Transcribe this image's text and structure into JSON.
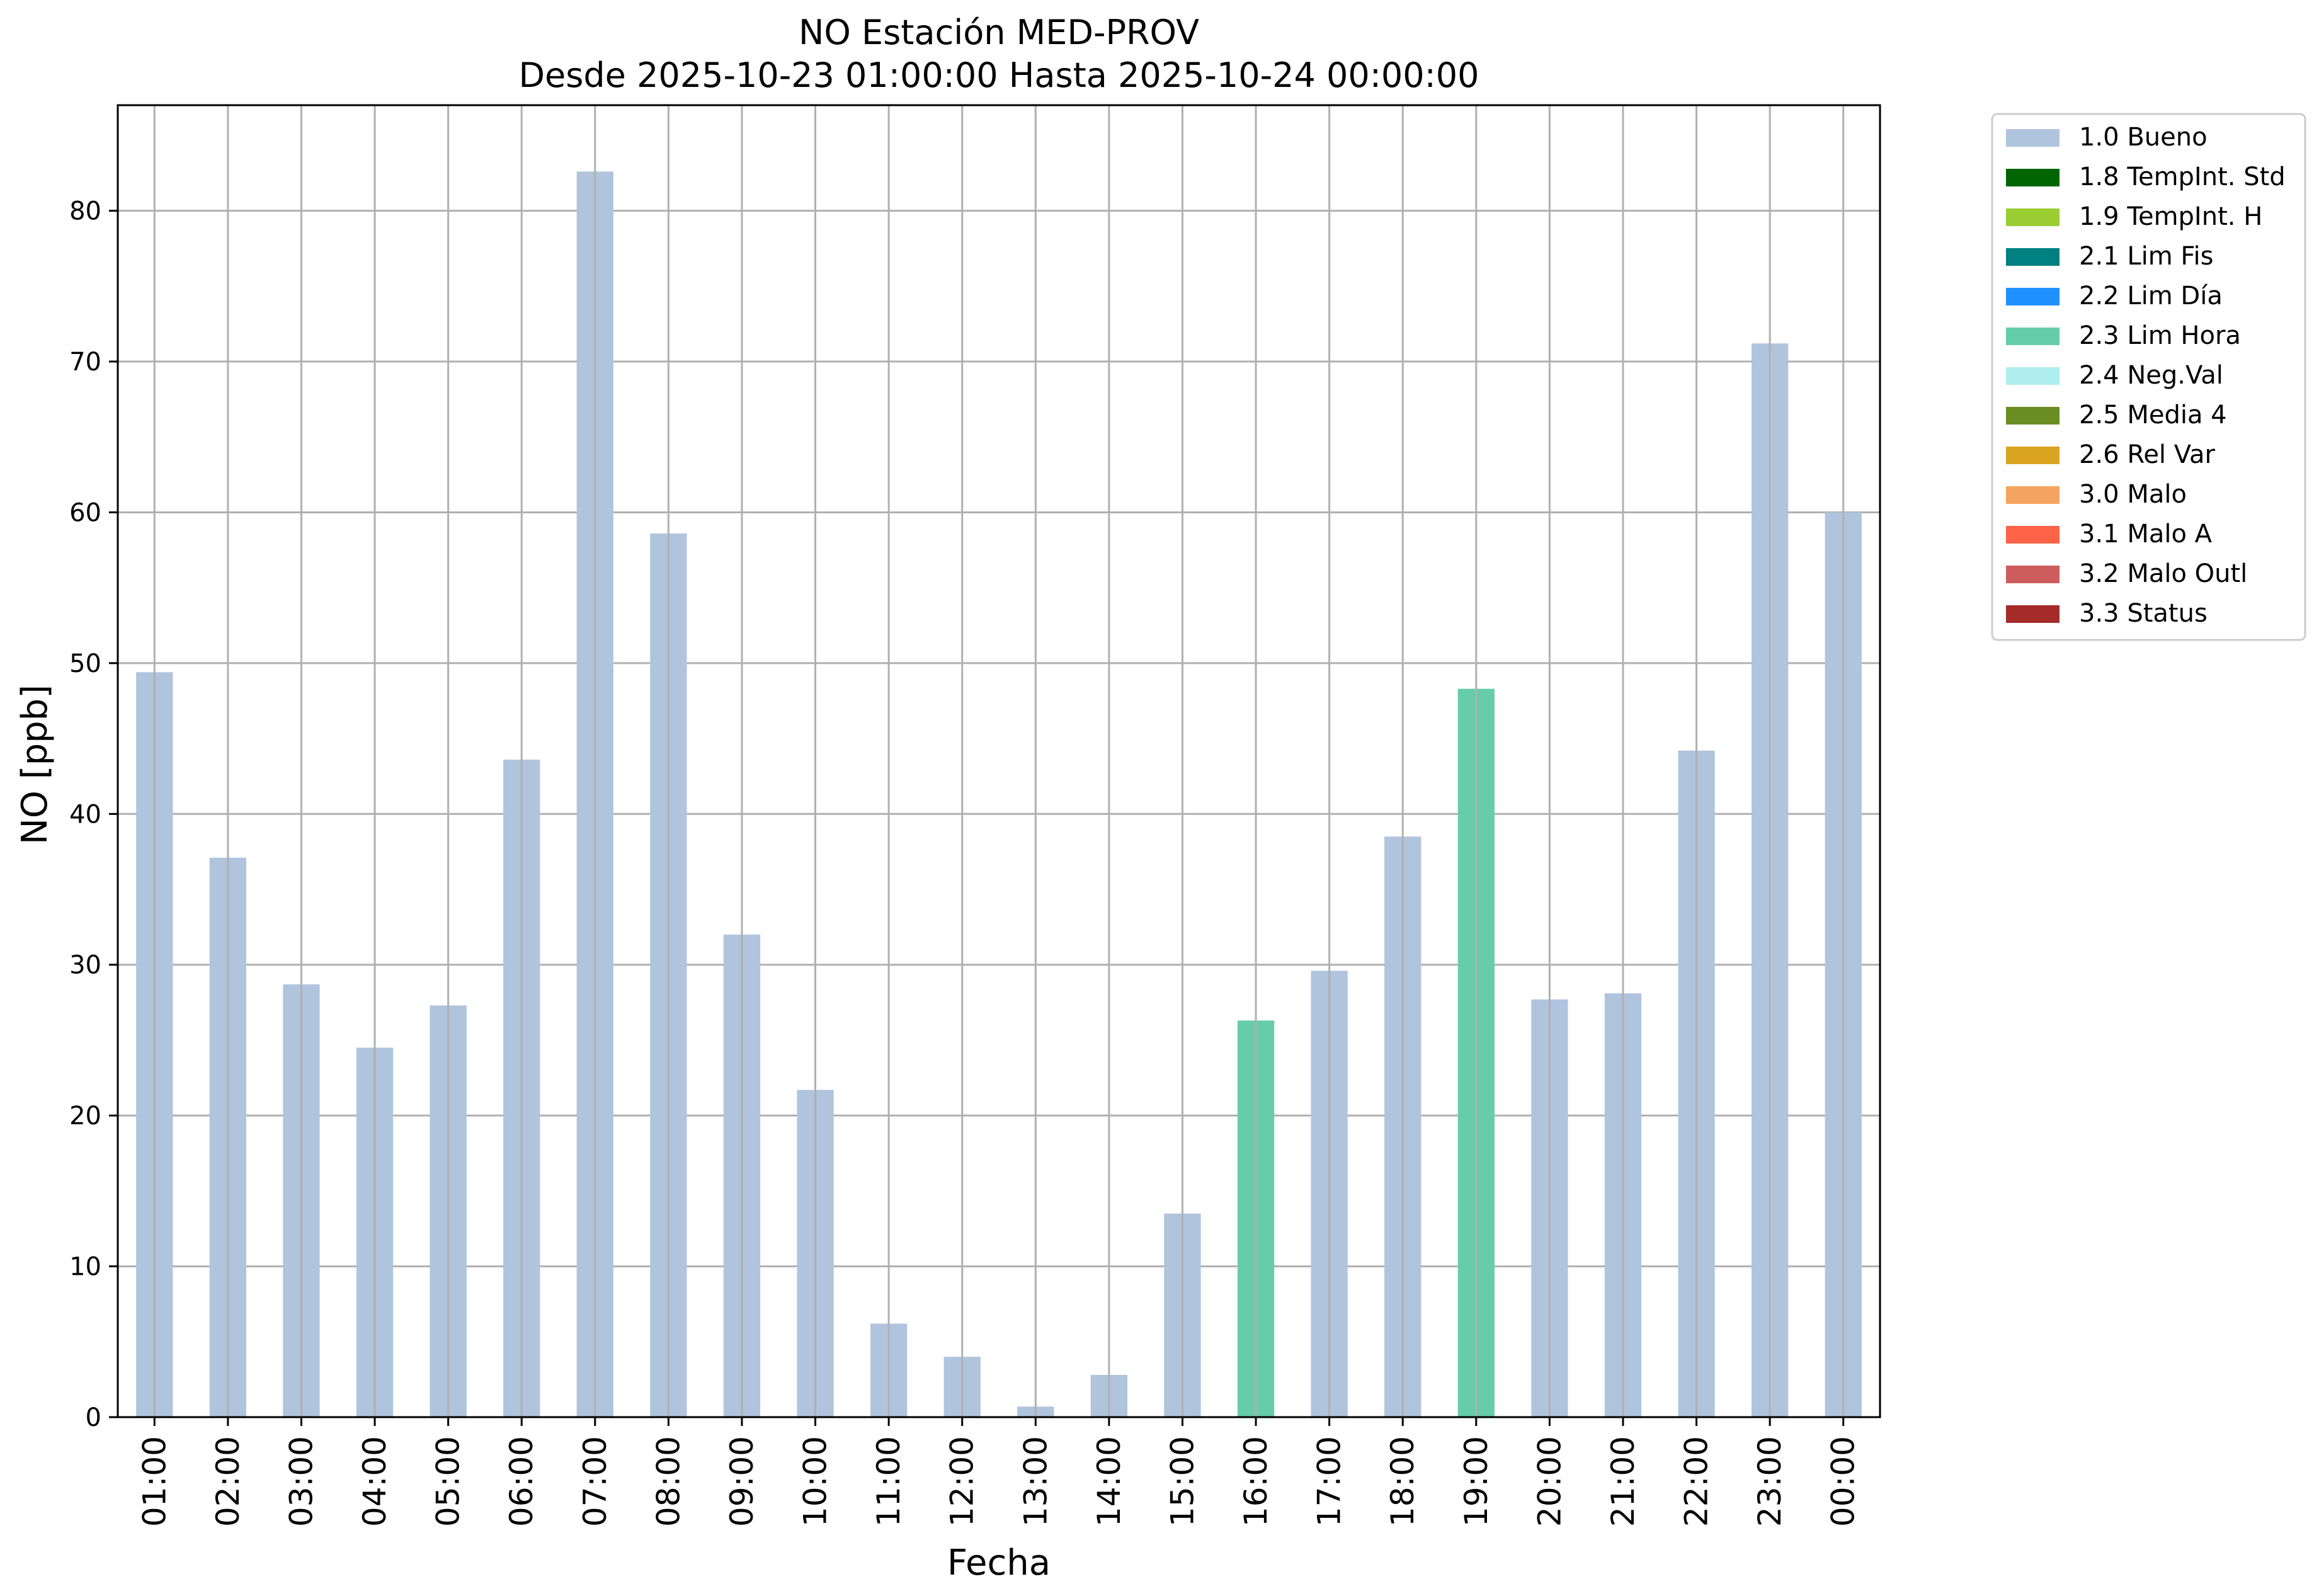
{
  "chart_data": {
    "type": "bar",
    "title": "NO Estación MED-PROV",
    "subtitle": "Desde 2025-10-23 01:00:00 Hasta 2025-10-24 00:00:00",
    "xlabel": "Fecha",
    "ylabel": "NO [ppb]",
    "ylim": [
      0,
      87
    ],
    "yticks": [
      0,
      10,
      20,
      30,
      40,
      50,
      60,
      70,
      80
    ],
    "grid": true,
    "legend_position": "outside-top-right",
    "categories": [
      "01:00",
      "02:00",
      "03:00",
      "04:00",
      "05:00",
      "06:00",
      "07:00",
      "08:00",
      "09:00",
      "10:00",
      "11:00",
      "12:00",
      "13:00",
      "14:00",
      "15:00",
      "16:00",
      "17:00",
      "18:00",
      "19:00",
      "20:00",
      "21:00",
      "22:00",
      "23:00",
      "00:00"
    ],
    "values": [
      49.4,
      37.1,
      28.7,
      24.5,
      27.3,
      43.6,
      82.6,
      58.6,
      32.0,
      21.7,
      6.2,
      4.0,
      0.7,
      2.8,
      13.5,
      26.3,
      29.6,
      38.5,
      48.3,
      27.7,
      28.1,
      44.2,
      71.2,
      60.0
    ],
    "flags": [
      "1.0 Bueno",
      "1.0 Bueno",
      "1.0 Bueno",
      "1.0 Bueno",
      "1.0 Bueno",
      "1.0 Bueno",
      "1.0 Bueno",
      "1.0 Bueno",
      "1.0 Bueno",
      "1.0 Bueno",
      "1.0 Bueno",
      "1.0 Bueno",
      "1.0 Bueno",
      "1.0 Bueno",
      "1.0 Bueno",
      "2.3 Lim Hora",
      "1.0 Bueno",
      "1.0 Bueno",
      "2.3 Lim Hora",
      "1.0 Bueno",
      "1.0 Bueno",
      "1.0 Bueno",
      "1.0 Bueno",
      "1.0 Bueno"
    ],
    "legend": [
      {
        "label": "1.0 Bueno",
        "color": "#b0c4de"
      },
      {
        "label": "1.8 TempInt. Std",
        "color": "#006400"
      },
      {
        "label": "1.9 TempInt. H",
        "color": "#9acd32"
      },
      {
        "label": "2.1 Lim Fis",
        "color": "#008080"
      },
      {
        "label": "2.2 Lim Día",
        "color": "#1e90ff"
      },
      {
        "label": "2.3 Lim Hora",
        "color": "#66cdaa"
      },
      {
        "label": "2.4 Neg.Val",
        "color": "#afeeee"
      },
      {
        "label": "2.5 Media 4",
        "color": "#6b8e23"
      },
      {
        "label": "2.6 Rel Var",
        "color": "#daa520"
      },
      {
        "label": "3.0 Malo",
        "color": "#f4a460"
      },
      {
        "label": "3.1 Malo A",
        "color": "#ff6347"
      },
      {
        "label": "3.2 Malo Outl",
        "color": "#cd5c5c"
      },
      {
        "label": "3.3 Status",
        "color": "#a52a2a"
      }
    ]
  }
}
